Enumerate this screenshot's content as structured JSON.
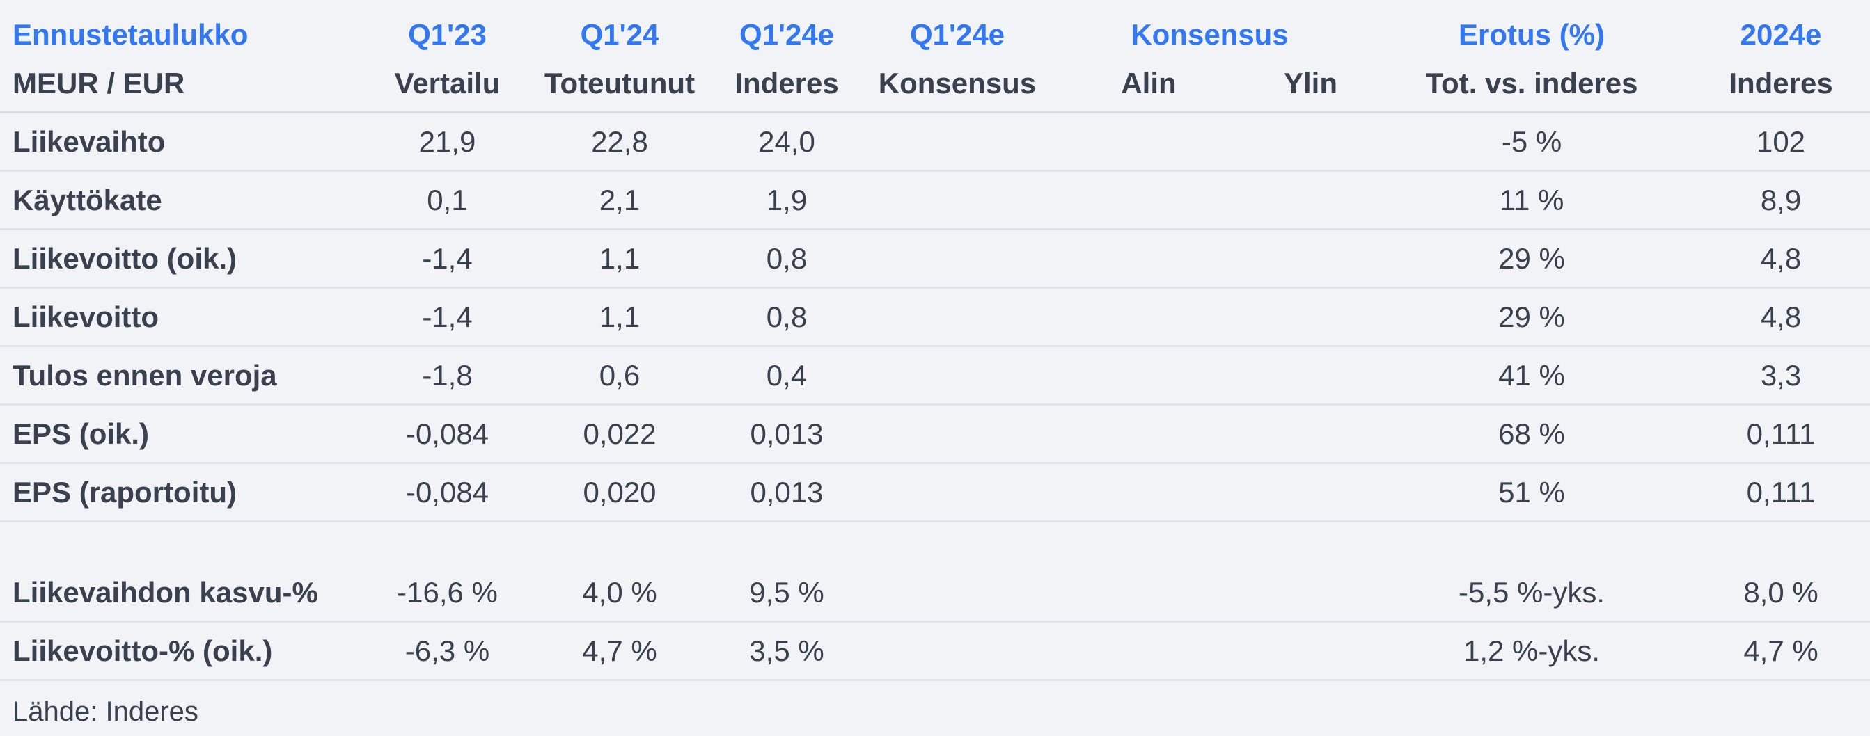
{
  "colors": {
    "accent_blue": "#3277f3",
    "text_dark": "#39404e",
    "background": "#f2f3f7",
    "row_separator": "#e2e3e8"
  },
  "chart_data": {
    "type": "table",
    "title": "Ennustetaulukko",
    "unit_label": "MEUR / EUR",
    "group_headers": [
      "Q1'23",
      "Q1'24",
      "Q1'24e",
      "Q1'24e",
      "Konsensus",
      "Erotus (%)",
      "2024e"
    ],
    "column_headers": [
      "Vertailu",
      "Toteutunut",
      "Inderes",
      "Konsensus",
      "Alin",
      "Ylin",
      "Tot. vs. inderes",
      "Inderes"
    ],
    "rows": [
      {
        "label": "Liikevaihto",
        "values": [
          "21,9",
          "22,8",
          "24,0",
          "",
          "",
          "",
          "-5 %",
          "102"
        ]
      },
      {
        "label": "Käyttökate",
        "values": [
          "0,1",
          "2,1",
          "1,9",
          "",
          "",
          "",
          "11 %",
          "8,9"
        ]
      },
      {
        "label": "Liikevoitto (oik.)",
        "values": [
          "-1,4",
          "1,1",
          "0,8",
          "",
          "",
          "",
          "29 %",
          "4,8"
        ]
      },
      {
        "label": "Liikevoitto",
        "values": [
          "-1,4",
          "1,1",
          "0,8",
          "",
          "",
          "",
          "29 %",
          "4,8"
        ]
      },
      {
        "label": "Tulos ennen veroja",
        "values": [
          "-1,8",
          "0,6",
          "0,4",
          "",
          "",
          "",
          "41 %",
          "3,3"
        ]
      },
      {
        "label": "EPS (oik.)",
        "values": [
          "-0,084",
          "0,022",
          "0,013",
          "",
          "",
          "",
          "68 %",
          "0,111"
        ]
      },
      {
        "label": "EPS (raportoitu)",
        "values": [
          "-0,084",
          "0,020",
          "0,013",
          "",
          "",
          "",
          "51 %",
          "0,111"
        ]
      },
      {
        "label": "Liikevaihdon kasvu-%",
        "values": [
          "-16,6 %",
          "4,0 %",
          "9,5 %",
          "",
          "",
          "",
          "-5,5 %-yks.",
          "8,0 %"
        ]
      },
      {
        "label": "Liikevoitto-% (oik.)",
        "values": [
          "-6,3 %",
          "4,7 %",
          "3,5 %",
          "",
          "",
          "",
          "1,2 %-yks.",
          "4,7 %"
        ]
      }
    ],
    "source": "Lähde: Inderes"
  }
}
